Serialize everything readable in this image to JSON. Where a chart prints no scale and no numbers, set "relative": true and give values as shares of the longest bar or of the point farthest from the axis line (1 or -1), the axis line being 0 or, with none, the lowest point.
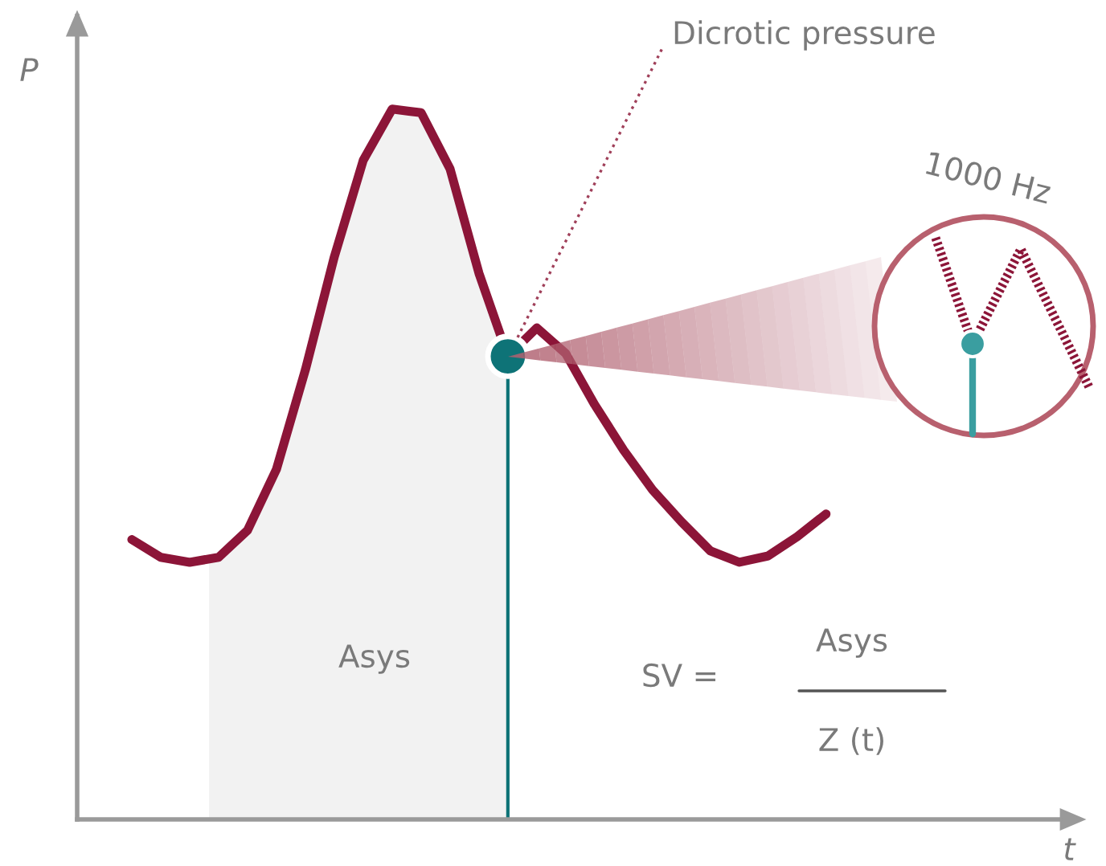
{
  "chart_data": {
    "type": "line",
    "relative": true,
    "ylabel": "P",
    "categories": [
      null,
      null,
      null,
      null,
      null,
      null,
      null,
      null,
      null,
      null,
      null,
      null,
      null,
      null,
      null,
      null,
      null,
      null,
      null,
      null,
      null,
      null,
      null,
      null,
      null
    ],
    "series": [
      {
        "color": "#8c1538",
        "values": [
          0.394,
          0.369,
          0.362,
          0.369,
          0.407,
          0.493,
          0.633,
          0.792,
          0.928,
          1.0,
          0.995,
          0.916,
          0.769,
          0.652,
          0.692,
          0.656,
          0.584,
          0.52,
          0.464,
          0.419,
          0.378,
          0.362,
          0.371,
          0.398,
          0.43
        ]
      }
    ],
    "annotations": [
      "Dicrotic pressure",
      "1000 Hz",
      "Asys",
      "SV =",
      "Asys",
      "Z (t)",
      "t"
    ],
    "grid": false
  }
}
